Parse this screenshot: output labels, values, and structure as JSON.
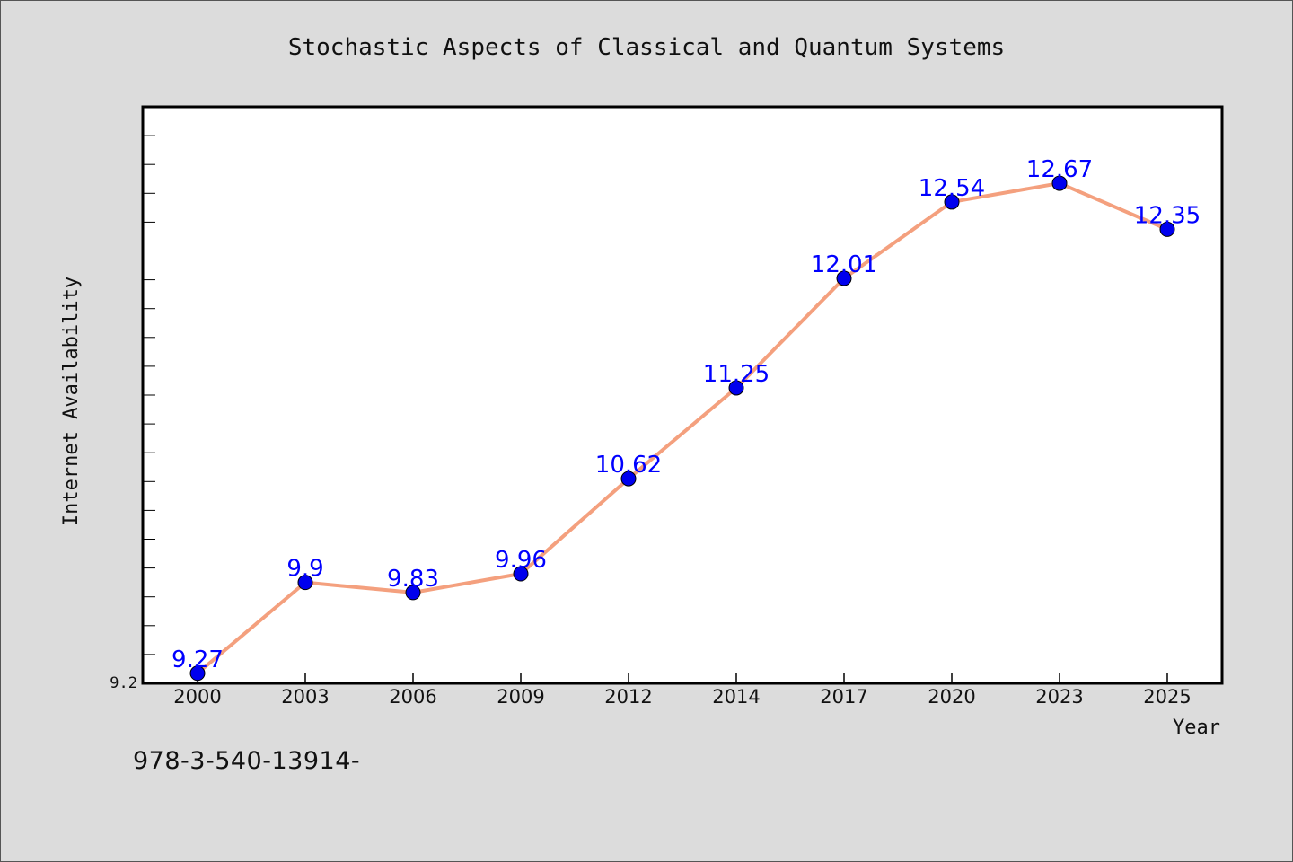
{
  "chart_data": {
    "type": "line",
    "title": "Stochastic Aspects of Classical and Quantum Systems",
    "xlabel": "Year",
    "ylabel": "Internet Availability",
    "categories": [
      "2000",
      "2003",
      "2006",
      "2009",
      "2012",
      "2014",
      "2017",
      "2020",
      "2023",
      "2025"
    ],
    "series": [
      {
        "values": [
          9.27,
          9.9,
          9.83,
          9.96,
          10.62,
          11.25,
          12.01,
          12.54,
          12.67,
          12.35
        ],
        "labels": [
          "9.27",
          "9.9",
          "9.83",
          "9.96",
          "10.62",
          "11.25",
          "12.01",
          "12.54",
          "12.67",
          "12.35"
        ]
      }
    ],
    "ylim": [
      9.2,
      13.2
    ],
    "y_tick_labels": [
      "9.2"
    ],
    "grid": false,
    "line_color": "#f4a07e",
    "marker_color": "#0000ee",
    "label_color": "#0000ff"
  },
  "footnote": "978-3-540-13914-"
}
